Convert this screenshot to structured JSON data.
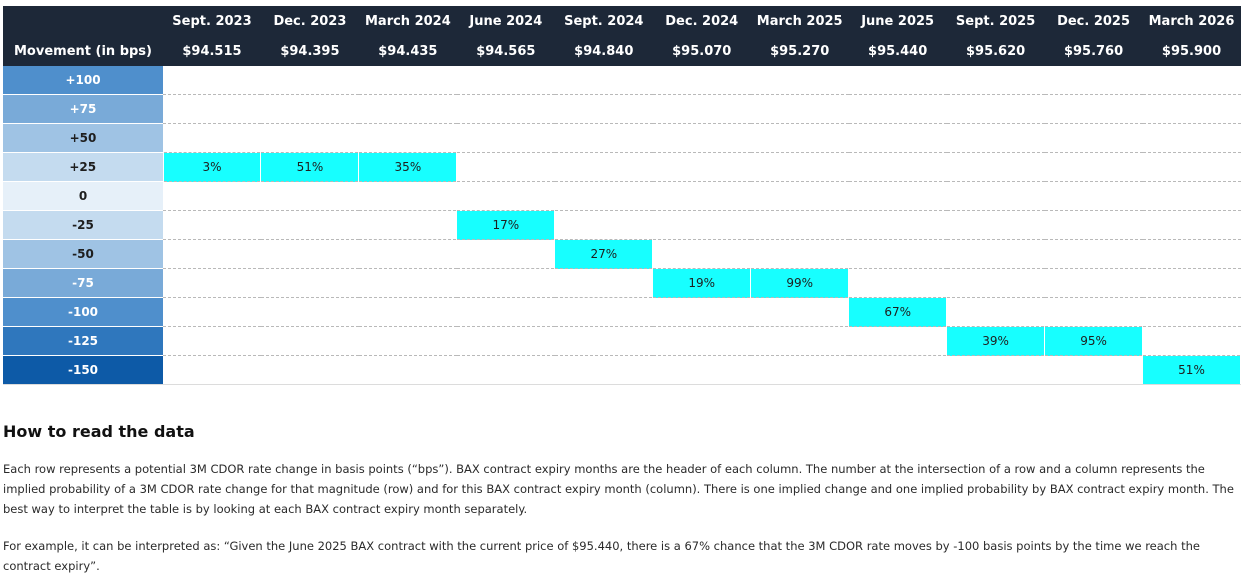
{
  "table": {
    "corner_label": "Movement (in bps)",
    "columns": [
      {
        "month": "Sept. 2023",
        "price": "$94.515"
      },
      {
        "month": "Dec. 2023",
        "price": "$94.395"
      },
      {
        "month": "March 2024",
        "price": "$94.435"
      },
      {
        "month": "June 2024",
        "price": "$94.565"
      },
      {
        "month": "Sept. 2024",
        "price": "$94.840"
      },
      {
        "month": "Dec. 2024",
        "price": "$95.070"
      },
      {
        "month": "March 2025",
        "price": "$95.270"
      },
      {
        "month": "June 2025",
        "price": "$95.440"
      },
      {
        "month": "Sept. 2025",
        "price": "$95.620"
      },
      {
        "month": "Dec. 2025",
        "price": "$95.760"
      },
      {
        "month": "March 2026",
        "price": "$95.900"
      }
    ],
    "rows": [
      {
        "movement": "+100",
        "bg": "#4f8fcc",
        "fg": "#ffffff",
        "cells": [
          "",
          "",
          "",
          "",
          "",
          "",
          "",
          "",
          "",
          "",
          ""
        ]
      },
      {
        "movement": "+75",
        "bg": "#79aad8",
        "fg": "#ffffff",
        "cells": [
          "",
          "",
          "",
          "",
          "",
          "",
          "",
          "",
          "",
          "",
          ""
        ]
      },
      {
        "movement": "+50",
        "bg": "#9fc3e4",
        "fg": "#1e1e1e",
        "cells": [
          "",
          "",
          "",
          "",
          "",
          "",
          "",
          "",
          "",
          "",
          ""
        ]
      },
      {
        "movement": "+25",
        "bg": "#c4dbef",
        "fg": "#1e1e1e",
        "cells": [
          "3%",
          "51%",
          "35%",
          "",
          "",
          "",
          "",
          "",
          "",
          "",
          ""
        ]
      },
      {
        "movement": "0",
        "bg": "#e6f0f9",
        "fg": "#1e1e1e",
        "cells": [
          "",
          "",
          "",
          "",
          "",
          "",
          "",
          "",
          "",
          "",
          ""
        ]
      },
      {
        "movement": "-25",
        "bg": "#c4dbef",
        "fg": "#1e1e1e",
        "cells": [
          "",
          "",
          "",
          "17%",
          "",
          "",
          "",
          "",
          "",
          "",
          ""
        ]
      },
      {
        "movement": "-50",
        "bg": "#9fc3e4",
        "fg": "#1e1e1e",
        "cells": [
          "",
          "",
          "",
          "",
          "27%",
          "",
          "",
          "",
          "",
          "",
          ""
        ]
      },
      {
        "movement": "-75",
        "bg": "#79aad8",
        "fg": "#ffffff",
        "cells": [
          "",
          "",
          "",
          "",
          "",
          "19%",
          "99%",
          "",
          "",
          "",
          ""
        ]
      },
      {
        "movement": "-100",
        "bg": "#4f8fcc",
        "fg": "#ffffff",
        "cells": [
          "",
          "",
          "",
          "",
          "",
          "",
          "",
          "67%",
          "",
          "",
          ""
        ]
      },
      {
        "movement": "-125",
        "bg": "#2f77bd",
        "fg": "#ffffff",
        "cells": [
          "",
          "",
          "",
          "",
          "",
          "",
          "",
          "",
          "39%",
          "95%",
          ""
        ]
      },
      {
        "movement": "-150",
        "bg": "#0d5aa7",
        "fg": "#ffffff",
        "cells": [
          "",
          "",
          "",
          "",
          "",
          "",
          "",
          "",
          "",
          "",
          "51%"
        ]
      }
    ],
    "highlight_color": "#17ffff"
  },
  "section": {
    "title": "How to read the data",
    "paragraph_1": "Each row represents a potential 3M CDOR rate change in basis points (“bps”). BAX contract expiry months are the header of each column. The number at the intersection of a row and a column represents the implied probability of a 3M CDOR rate change for that magnitude (row) and for this BAX contract expiry month (column). There is one implied change and one implied probability by BAX contract expiry month. The best way to interpret the table is by looking at each BAX contract expiry month separately.",
    "paragraph_2": "For example, it can be interpreted as: “Given the June 2025 BAX contract with the current price of $95.440, there is a 67% chance that the 3M CDOR rate moves by -100 basis points by the time we reach the contract expiry”."
  }
}
